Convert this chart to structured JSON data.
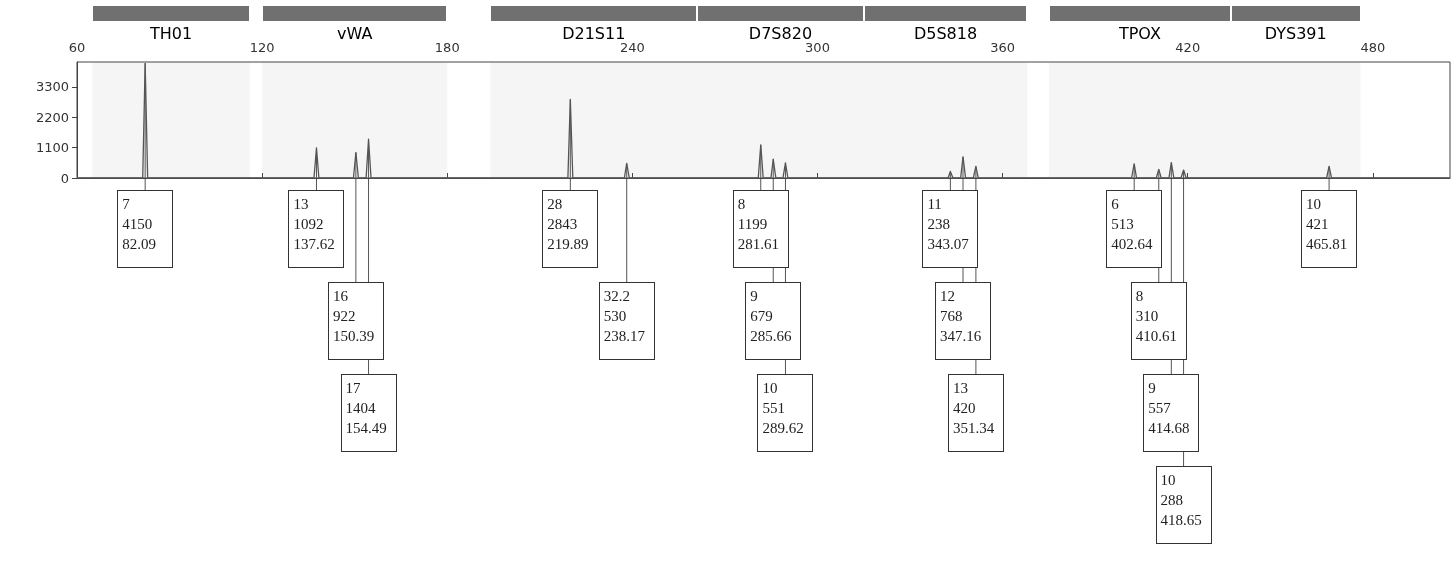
{
  "chart_data": {
    "type": "line",
    "color": "#555555",
    "x": [
      60,
      81.3,
      82.09,
      82.9,
      136.8,
      137.62,
      138.4,
      149.6,
      150.39,
      151.2,
      153.7,
      154.49,
      155.3,
      219.1,
      219.89,
      220.7,
      237.4,
      238.17,
      239,
      280.8,
      281.61,
      282.4,
      284.9,
      285.66,
      286.5,
      288.8,
      289.62,
      290.4,
      342.3,
      343.07,
      343.9,
      346.4,
      347.16,
      348,
      350.5,
      351.34,
      352.1,
      401.8,
      402.64,
      403.4,
      409.8,
      410.61,
      411.4,
      413.9,
      414.68,
      415.5,
      417.8,
      418.65,
      419.5,
      465,
      465.81,
      466.6,
      505
    ],
    "values": [
      0,
      0,
      4150,
      0,
      0,
      1092,
      0,
      0,
      922,
      0,
      0,
      1404,
      0,
      0,
      2843,
      0,
      0,
      530,
      0,
      0,
      1199,
      0,
      0,
      679,
      0,
      0,
      551,
      0,
      0,
      238,
      0,
      0,
      768,
      0,
      0,
      420,
      0,
      0,
      513,
      0,
      0,
      310,
      0,
      0,
      557,
      0,
      0,
      288,
      0,
      0,
      421,
      0,
      0
    ],
    "xlim": [
      60,
      505
    ],
    "xticks": [
      60,
      120,
      180,
      240,
      300,
      360,
      420,
      480
    ],
    "ylim": [
      0,
      4200
    ],
    "yticks": [
      0,
      1100,
      2200,
      3300
    ],
    "grid": false,
    "marker": "none",
    "line_style": "solid",
    "bands": [
      {
        "axis": "x",
        "from": 65,
        "to": 116,
        "label": "TH01",
        "color": "#707070"
      },
      {
        "axis": "x",
        "from": 120,
        "to": 180,
        "label": "vWA",
        "color": "#707070"
      },
      {
        "axis": "x",
        "from": 194,
        "to": 261,
        "label": "D21S11",
        "color": "#707070"
      },
      {
        "axis": "x",
        "from": 261,
        "to": 315,
        "label": "D7S820",
        "color": "#707070"
      },
      {
        "axis": "x",
        "from": 315,
        "to": 368,
        "label": "D5S818",
        "color": "#707070"
      },
      {
        "axis": "x",
        "from": 375,
        "to": 434,
        "label": "TPOX",
        "color": "#707070"
      },
      {
        "axis": "x",
        "from": 434,
        "to": 476,
        "label": "DYS391",
        "color": "#707070"
      }
    ],
    "annotations": [
      {
        "text": "7\n4150\n82.09",
        "x": 82.09,
        "y": 4150
      },
      {
        "text": "13\n1092\n137.62",
        "x": 137.62,
        "y": 1092
      },
      {
        "text": "16\n922\n150.39",
        "x": 150.39,
        "y": 922
      },
      {
        "text": "17\n1404\n154.49",
        "x": 154.49,
        "y": 1404
      },
      {
        "text": "28\n2843\n219.89",
        "x": 219.89,
        "y": 2843
      },
      {
        "text": "32.2\n530\n238.17",
        "x": 238.17,
        "y": 530
      },
      {
        "text": "8\n1199\n281.61",
        "x": 281.61,
        "y": 1199
      },
      {
        "text": "9\n679\n285.66",
        "x": 285.66,
        "y": 679
      },
      {
        "text": "10\n551\n289.62",
        "x": 289.62,
        "y": 551
      },
      {
        "text": "11\n238\n343.07",
        "x": 343.07,
        "y": 238
      },
      {
        "text": "12\n768\n347.16",
        "x": 347.16,
        "y": 768
      },
      {
        "text": "13\n420\n351.34",
        "x": 351.34,
        "y": 420
      },
      {
        "text": "6\n513\n402.64",
        "x": 402.64,
        "y": 513
      },
      {
        "text": "8\n310\n410.61",
        "x": 410.61,
        "y": 310
      },
      {
        "text": "9\n557\n414.68",
        "x": 414.68,
        "y": 557
      },
      {
        "text": "10\n288\n418.65",
        "x": 418.65,
        "y": 288
      },
      {
        "text": "10\n421\n465.81",
        "x": 465.81,
        "y": 421
      }
    ]
  }
}
